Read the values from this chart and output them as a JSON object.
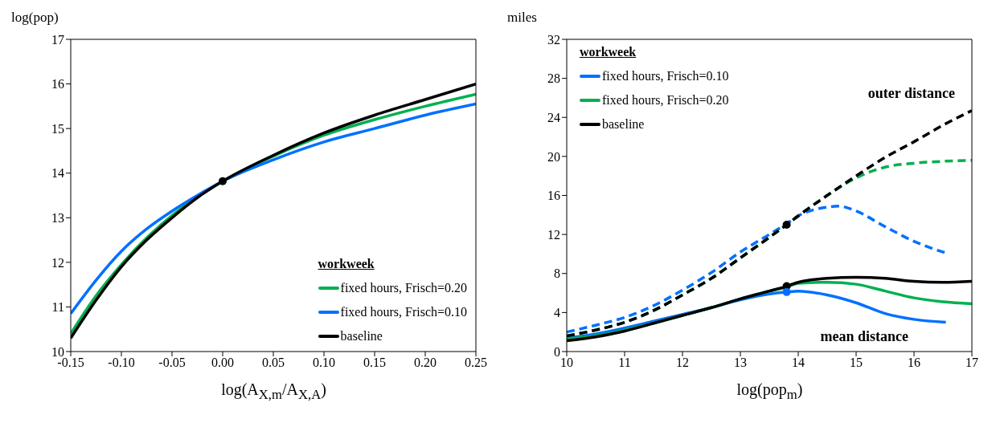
{
  "chart_data": [
    {
      "type": "line",
      "ylabel": "log(pop)",
      "xlabel": "log(A$_{X,m}$/A$_{X,A}$)",
      "legend_title": "workweek",
      "legend": "bottom right",
      "grid": false,
      "x": [
        -0.15,
        -0.125,
        -0.1,
        -0.075,
        -0.05,
        -0.025,
        0,
        0.05,
        0.1,
        0.15,
        0.2,
        0.25
      ],
      "xlim": [
        -0.15,
        0.25
      ],
      "xticks": [
        {
          "value": -0.15,
          "label": "-0.15"
        },
        {
          "value": -0.1,
          "label": "-0.10"
        },
        {
          "value": -0.05,
          "label": "-0.05"
        },
        {
          "value": 0,
          "label": "0.00"
        },
        {
          "value": 0.05,
          "label": "0.05"
        },
        {
          "value": 0.1,
          "label": "0.10"
        },
        {
          "value": 0.15,
          "label": "0.15"
        },
        {
          "value": 0.2,
          "label": "0.20"
        },
        {
          "value": 0.25,
          "label": "0.25"
        }
      ],
      "ylim": [
        10,
        17
      ],
      "yticks": [
        10,
        11,
        12,
        13,
        14,
        15,
        16,
        17
      ],
      "series": [
        {
          "type": "line",
          "name": "fixed hours, Frisch=0.20",
          "color": "#00b050",
          "line_style": "solid",
          "values": [
            10.4,
            11.25,
            11.95,
            12.55,
            13.05,
            13.47,
            13.82,
            14.38,
            14.85,
            15.2,
            15.5,
            15.77
          ]
        },
        {
          "type": "line",
          "name": "fixed hours, Frisch=0.10",
          "color": "#0070ff",
          "line_style": "solid",
          "values": [
            10.85,
            11.6,
            12.25,
            12.75,
            13.15,
            13.5,
            13.82,
            14.3,
            14.7,
            15.0,
            15.3,
            15.55
          ]
        },
        {
          "type": "line",
          "name": "baseline",
          "color": "#000000",
          "line_style": "solid",
          "values": [
            10.3,
            11.15,
            11.9,
            12.5,
            13.0,
            13.45,
            13.82,
            14.4,
            14.9,
            15.3,
            15.65,
            16.0
          ]
        },
        {
          "type": "scatter",
          "color": "#000000",
          "marker": "circle",
          "x": [
            0
          ],
          "values": [
            13.82
          ]
        }
      ]
    },
    {
      "type": "line",
      "ylabel": "miles",
      "xlabel": "log(pop$_{m}$)",
      "legend_title": "workweek",
      "legend": "top left",
      "grid": false,
      "xlim": [
        10,
        17
      ],
      "xticks": [
        10,
        11,
        12,
        13,
        14,
        15,
        16,
        17
      ],
      "ylim": [
        0,
        32
      ],
      "yticks": [
        0,
        4,
        8,
        12,
        16,
        20,
        24,
        28,
        32
      ],
      "annotations": [
        "outer distance",
        "mean distance"
      ],
      "series": [
        {
          "type": "line",
          "name": "fixed hours, Frisch=0.10",
          "color": "#0070ff",
          "line_style": "solid",
          "x": [
            10,
            10.5,
            11,
            11.5,
            12,
            12.5,
            13,
            13.5,
            13.8,
            14,
            14.5,
            15,
            15.5,
            16,
            16.55
          ],
          "values": [
            1.4,
            1.8,
            2.4,
            3.1,
            3.8,
            4.5,
            5.3,
            5.9,
            6.1,
            6.2,
            5.8,
            5.0,
            3.9,
            3.3,
            3.0
          ]
        },
        {
          "type": "line",
          "name": "fixed hours, Frisch=0.20",
          "color": "#00b050",
          "line_style": "solid",
          "x": [
            10,
            10.5,
            11,
            11.5,
            12,
            12.5,
            13,
            13.5,
            13.8,
            14,
            14.5,
            15,
            15.5,
            16,
            16.5,
            17
          ],
          "values": [
            1.3,
            1.6,
            2.2,
            2.9,
            3.7,
            4.5,
            5.4,
            6.2,
            6.6,
            7.0,
            7.1,
            6.9,
            6.2,
            5.5,
            5.1,
            4.9
          ]
        },
        {
          "type": "line",
          "name": "baseline",
          "color": "#000000",
          "line_style": "solid",
          "x": [
            10,
            10.5,
            11,
            11.5,
            12,
            12.5,
            13,
            13.5,
            13.8,
            14,
            14.5,
            15,
            15.5,
            16,
            16.5,
            17
          ],
          "values": [
            1.1,
            1.5,
            2.1,
            2.9,
            3.7,
            4.5,
            5.4,
            6.2,
            6.7,
            7.1,
            7.5,
            7.6,
            7.5,
            7.2,
            7.1,
            7.2
          ]
        },
        {
          "type": "line",
          "color": "#0070ff",
          "line_style": "dashed",
          "x": [
            10,
            10.5,
            11,
            11.5,
            12,
            12.5,
            13,
            13.5,
            13.8,
            14,
            14.5,
            14.7,
            15,
            15.5,
            16,
            16.55
          ],
          "values": [
            2.0,
            2.7,
            3.5,
            4.7,
            6.3,
            8.1,
            10.2,
            12.0,
            13.1,
            13.9,
            14.8,
            14.9,
            14.4,
            12.8,
            11.3,
            10.1
          ]
        },
        {
          "type": "line",
          "color": "#00b050",
          "line_style": "dashed",
          "x": [
            10,
            10.5,
            11,
            11.5,
            12,
            12.5,
            13,
            13.5,
            13.8,
            14,
            14.5,
            15,
            15.5,
            16,
            16.5,
            17
          ],
          "values": [
            1.6,
            2.2,
            3.0,
            4.2,
            5.8,
            7.5,
            9.6,
            11.7,
            13.0,
            13.9,
            16.0,
            17.8,
            18.9,
            19.3,
            19.5,
            19.6
          ]
        },
        {
          "type": "line",
          "color": "#000000",
          "line_style": "dashed",
          "x": [
            10,
            10.5,
            11,
            11.5,
            12,
            12.5,
            13,
            13.5,
            13.8,
            14,
            14.5,
            15,
            15.5,
            16,
            16.5,
            17
          ],
          "values": [
            1.6,
            2.2,
            3.0,
            4.2,
            5.8,
            7.5,
            9.6,
            11.7,
            13.0,
            13.9,
            16.0,
            18.0,
            19.9,
            21.5,
            23.2,
            24.7
          ]
        },
        {
          "type": "scatter",
          "color": "#000000",
          "marker": "circle",
          "x": [
            13.8,
            13.8
          ],
          "values": [
            13.0,
            6.7
          ]
        },
        {
          "type": "scatter",
          "color": "#0070ff",
          "marker": "circle",
          "x": [
            13.8
          ],
          "values": [
            6.1
          ]
        }
      ]
    }
  ]
}
